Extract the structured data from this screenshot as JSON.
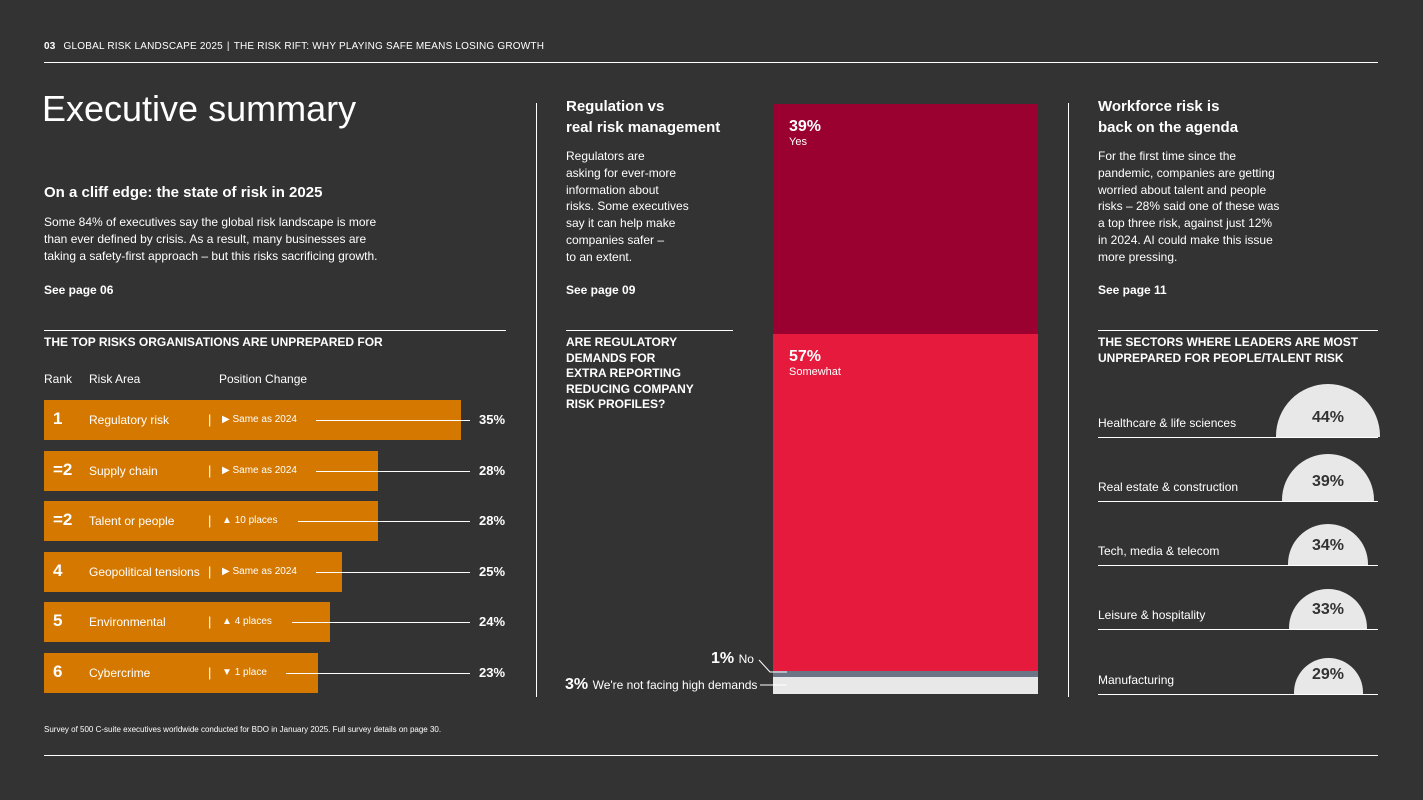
{
  "header": {
    "page_number": "03",
    "report": "GLOBAL RISK LANDSCAPE 2025",
    "separator": "|",
    "subtitle": "THE RISK RIFT: WHY PLAYING SAFE MEANS LOSING GROWTH"
  },
  "left": {
    "title": "Executive summary",
    "section_heading": "On a cliff edge: the state of risk in 2025",
    "section_body": "Some 84% of executives say the global risk landscape is more than ever defined by crisis. As a result, many businesses are taking a safety-first approach – but this risks sacrificing growth.",
    "see_page": "See page 06",
    "table_heading": "THE TOP RISKS ORGANISATIONS ARE UNPREPARED FOR",
    "col_rank": "Rank",
    "col_area": "Risk Area",
    "col_change": "Position Change",
    "pipe": "|",
    "rows": [
      {
        "rank": "1",
        "area": "Regulatory risk",
        "change_icon": "▶",
        "change": "Same as 2024",
        "pct": "35%",
        "value": 35
      },
      {
        "rank": "=2",
        "area": "Supply chain",
        "change_icon": "▶",
        "change": "Same as 2024",
        "pct": "28%",
        "value": 28
      },
      {
        "rank": "=2",
        "area": "Talent or people",
        "change_icon": "▲",
        "change": "10 places",
        "pct": "28%",
        "value": 28
      },
      {
        "rank": "4",
        "area": "Geopolitical tensions",
        "change_icon": "▶",
        "change": "Same as 2024",
        "pct": "25%",
        "value": 25
      },
      {
        "rank": "5",
        "area": "Environmental",
        "change_icon": "▲",
        "change": "4 places",
        "pct": "24%",
        "value": 24
      },
      {
        "rank": "6",
        "area": "Cybercrime",
        "change_icon": "▼",
        "change": "1 place",
        "pct": "23%",
        "value": 23
      }
    ]
  },
  "middle": {
    "heading_line1": "Regulation vs",
    "heading_line2": "real risk management",
    "body_lines": [
      "Regulators are",
      "asking for ever-more",
      "information about",
      "risks. Some executives",
      "say it can help make",
      "companies safer –",
      "to an extent."
    ],
    "see_page": "See page 09",
    "question_lines": [
      "ARE REGULATORY",
      "DEMANDS FOR",
      "EXTRA REPORTING",
      "REDUCING COMPANY",
      "RISK PROFILES?"
    ],
    "stack": {
      "yes": {
        "pct": "39%",
        "label": "Yes",
        "value": 39
      },
      "somewhat": {
        "pct": "57%",
        "label": "Somewhat",
        "value": 57
      },
      "no": {
        "pct": "1%",
        "label": "No",
        "value": 1
      },
      "not_facing": {
        "pct": "3%",
        "label": "We're not facing high demands",
        "value": 3
      }
    }
  },
  "right": {
    "heading_line1": "Workforce risk is",
    "heading_line2": "back on the agenda",
    "body_lines": [
      "For the first time since the",
      "pandemic, companies are getting",
      "worried about talent and people",
      "risks – 28% said one of these was",
      "a top three risk, against just 12%",
      "in 2024. AI could make this issue",
      "more pressing."
    ],
    "see_page": "See page 11",
    "chart_heading_line1": "THE SECTORS WHERE LEADERS ARE MOST",
    "chart_heading_line2": "UNPREPARED FOR PEOPLE/TALENT RISK",
    "sectors": [
      {
        "name": "Healthcare & life sciences",
        "pct": "44%",
        "value": 44
      },
      {
        "name": "Real estate & construction",
        "pct": "39%",
        "value": 39
      },
      {
        "name": "Tech, media & telecom",
        "pct": "34%",
        "value": 34
      },
      {
        "name": "Leisure & hospitality",
        "pct": "33%",
        "value": 33
      },
      {
        "name": "Manufacturing",
        "pct": "29%",
        "value": 29
      }
    ]
  },
  "footnote": "Survey of 500 C-suite executives worldwide conducted for BDO in January 2025. Full survey details on page 30.",
  "colors": {
    "background": "#333333",
    "orange": "#d57800",
    "dark_red": "#9a0030",
    "red": "#e51a3c",
    "slate": "#6b7585",
    "light": "#e8e8e8"
  },
  "chart_data": [
    {
      "type": "bar",
      "title": "THE TOP RISKS ORGANISATIONS ARE UNPREPARED FOR",
      "categories": [
        "Regulatory risk",
        "Supply chain",
        "Talent or people",
        "Geopolitical tensions",
        "Environmental",
        "Cybercrime"
      ],
      "values": [
        35,
        28,
        28,
        25,
        24,
        23
      ],
      "unit": "%"
    },
    {
      "type": "bar",
      "title": "ARE REGULATORY DEMANDS FOR EXTRA REPORTING REDUCING COMPANY RISK PROFILES?",
      "categories": [
        "Yes",
        "Somewhat",
        "No",
        "We're not facing high demands"
      ],
      "values": [
        39,
        57,
        1,
        3
      ],
      "unit": "%",
      "stacked": true
    },
    {
      "type": "bar",
      "title": "THE SECTORS WHERE LEADERS ARE MOST UNPREPARED FOR PEOPLE/TALENT RISK",
      "categories": [
        "Healthcare & life sciences",
        "Real estate & construction",
        "Tech, media & telecom",
        "Leisure & hospitality",
        "Manufacturing"
      ],
      "values": [
        44,
        39,
        34,
        33,
        29
      ],
      "unit": "%"
    }
  ]
}
